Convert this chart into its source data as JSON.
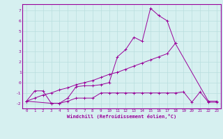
{
  "xlabel": "Windchill (Refroidissement éolien,°C)",
  "x": [
    0,
    1,
    2,
    3,
    4,
    5,
    6,
    7,
    8,
    9,
    10,
    11,
    12,
    13,
    14,
    15,
    16,
    17,
    18,
    19,
    20,
    21,
    22,
    23
  ],
  "line1_x": [
    0,
    1,
    2,
    3,
    4,
    5,
    6,
    7,
    8,
    9,
    10,
    11,
    12,
    13,
    14,
    15,
    16,
    17,
    18,
    22,
    23
  ],
  "line1_y": [
    -1.8,
    -0.8,
    -0.8,
    -2.0,
    -2.0,
    -1.5,
    -0.4,
    -0.3,
    -0.3,
    -0.2,
    0.0,
    2.5,
    3.2,
    4.4,
    4.0,
    7.2,
    6.5,
    6.0,
    3.8,
    -1.8,
    -1.8
  ],
  "line2_x": [
    0,
    1,
    2,
    3,
    4,
    5,
    6,
    7,
    8,
    9,
    10,
    11,
    12,
    13,
    14,
    15,
    16,
    17,
    18
  ],
  "line2_y": [
    -1.8,
    -1.5,
    -1.2,
    -1.0,
    -0.7,
    -0.5,
    -0.2,
    0.0,
    0.2,
    0.5,
    0.8,
    1.0,
    1.3,
    1.6,
    1.9,
    2.2,
    2.5,
    2.8,
    3.8
  ],
  "line3_x": [
    0,
    3,
    4,
    5,
    6,
    7,
    8,
    9,
    10,
    11,
    12,
    13,
    14,
    15,
    16,
    17,
    18,
    19,
    20,
    21,
    22,
    23
  ],
  "line3_y": [
    -1.8,
    -2.0,
    -2.0,
    -1.8,
    -1.5,
    -1.5,
    -1.5,
    -1.0,
    -1.0,
    -1.0,
    -1.0,
    -1.0,
    -1.0,
    -1.0,
    -1.0,
    -1.0,
    -1.0,
    -0.9,
    -1.9,
    -0.9,
    -1.9,
    -1.9
  ],
  "color": "#990099",
  "bg_color": "#d6f0f0",
  "grid_color": "#b8dede",
  "ylim": [
    -2.5,
    7.6
  ],
  "xlim": [
    -0.5,
    23.5
  ],
  "yticks": [
    -2,
    -1,
    0,
    1,
    2,
    3,
    4,
    5,
    6,
    7
  ],
  "xticks": [
    0,
    1,
    2,
    3,
    4,
    5,
    6,
    7,
    8,
    9,
    10,
    11,
    12,
    13,
    14,
    15,
    16,
    17,
    18,
    19,
    20,
    21,
    22,
    23
  ]
}
